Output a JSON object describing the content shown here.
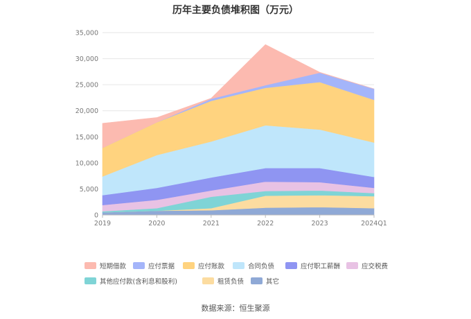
{
  "chart_data": {
    "type": "area",
    "stacked": true,
    "title": "历年主要负债堆积图（万元）",
    "categories": [
      "2019",
      "2020",
      "2021",
      "2022",
      "2023",
      "2024Q1"
    ],
    "ylim": [
      0,
      35000
    ],
    "yticks": [
      "35,000",
      "30,000",
      "25,000",
      "20,000",
      "15,000",
      "10,000",
      "5,000",
      "0"
    ],
    "ytick_values": [
      35000,
      30000,
      25000,
      20000,
      15000,
      10000,
      5000,
      0
    ],
    "series": [
      {
        "name": "其它",
        "color": "#8fa9d6",
        "values": [
          500,
          800,
          900,
          1400,
          1500,
          1300
        ]
      },
      {
        "name": "租赁负债",
        "color": "#fcdca0",
        "values": [
          0,
          0,
          400,
          2300,
          2300,
          2300
        ]
      },
      {
        "name": "其他应付款(含利息和股利)",
        "color": "#7fd4d6",
        "values": [
          200,
          500,
          2200,
          900,
          900,
          600
        ]
      },
      {
        "name": "应交税费",
        "color": "#e8c2e4",
        "values": [
          1200,
          1600,
          1200,
          1800,
          1600,
          1000
        ]
      },
      {
        "name": "应付职工薪酬",
        "color": "#8f95f2",
        "values": [
          1900,
          2300,
          2500,
          2600,
          2700,
          2100
        ]
      },
      {
        "name": "合同负债",
        "color": "#bfe6fb",
        "values": [
          3600,
          6300,
          6900,
          8200,
          7400,
          6600
        ]
      },
      {
        "name": "应付账款",
        "color": "#ffd37f",
        "values": [
          5500,
          6300,
          7800,
          7200,
          9100,
          8200
        ]
      },
      {
        "name": "应付票据",
        "color": "#a4b5fa",
        "values": [
          0,
          0,
          400,
          500,
          1800,
          2100
        ]
      },
      {
        "name": "短期借款",
        "color": "#fcbab0",
        "values": [
          4700,
          900,
          100,
          7800,
          100,
          0
        ]
      }
    ]
  },
  "legend_order": [
    "短期借款",
    "应付票据",
    "应付账款",
    "合同负债",
    "应付职工薪酬",
    "应交税费",
    "其他应付款(含利息和股利)",
    "租赁负债",
    "其它"
  ],
  "source_text": "数据来源：恒生聚源"
}
